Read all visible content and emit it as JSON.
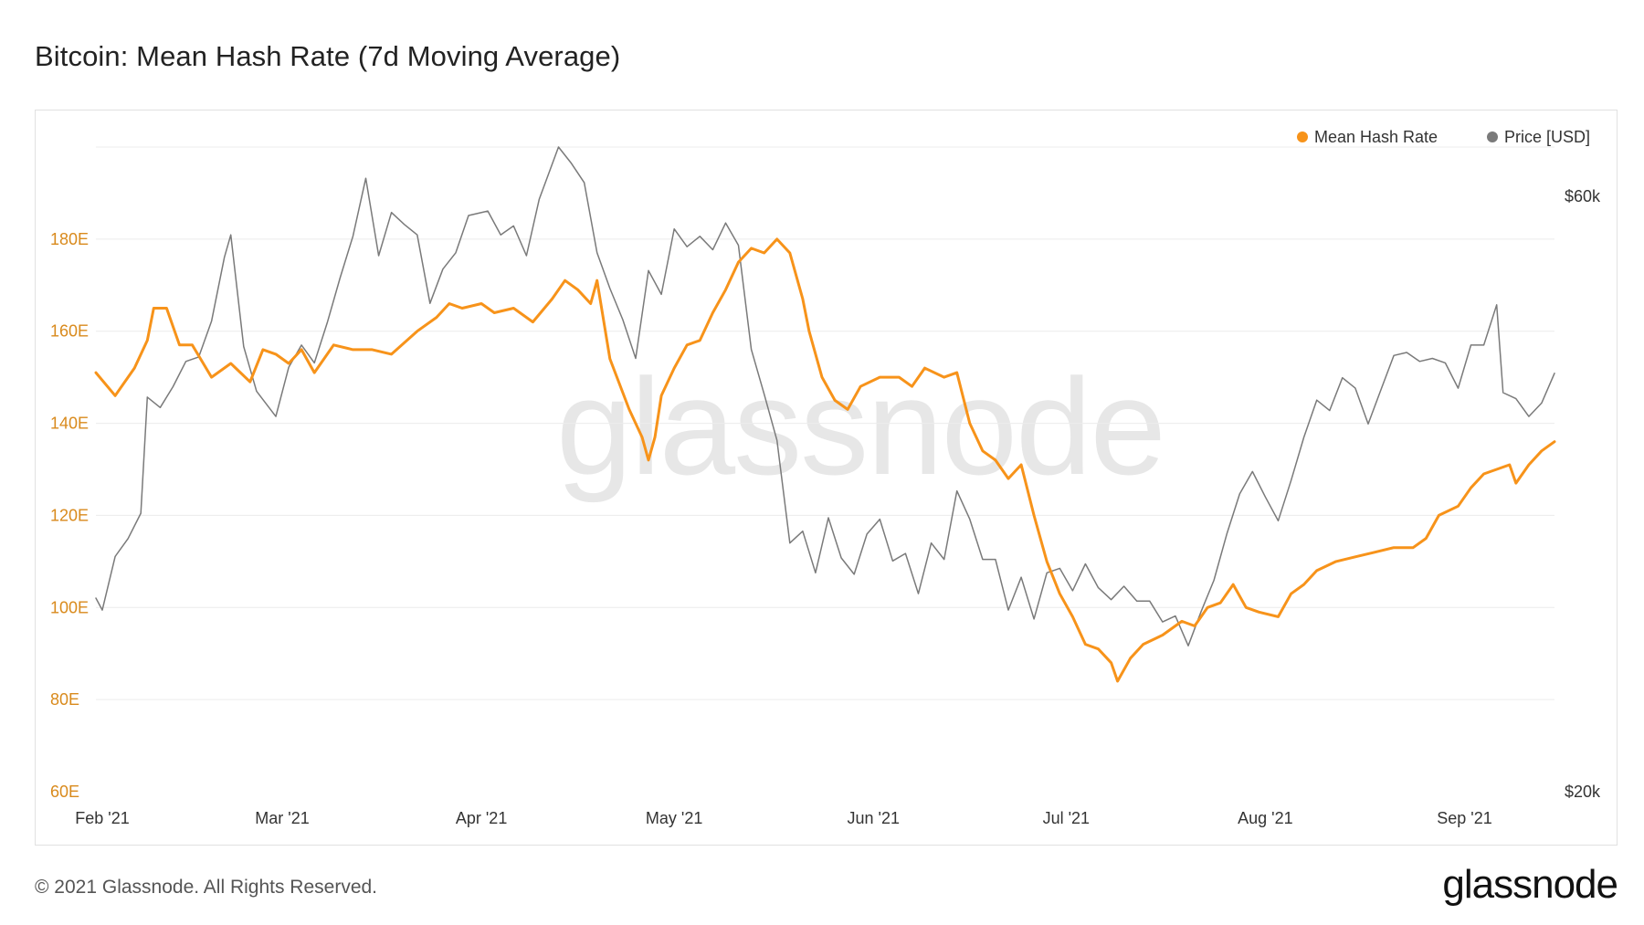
{
  "page": {
    "title": "Bitcoin: Mean Hash Rate (7d Moving Average)",
    "copyright": "© 2021 Glassnode. All Rights Reserved.",
    "logo_text": "glassnode",
    "watermark_text": "glassnode"
  },
  "colors": {
    "hash_rate": "#f7931a",
    "price": "#7a7a7a",
    "grid": "#ececec",
    "left_axis_text": "#d98a1c"
  },
  "chart_data": {
    "type": "line",
    "x_ticks": [
      "Feb '21",
      "Mar '21",
      "Apr '21",
      "May '21",
      "Jun '21",
      "Jul '21",
      "Aug '21",
      "Sep '21"
    ],
    "x_tick_dates": [
      "2021-02-01",
      "2021-03-01",
      "2021-04-01",
      "2021-05-01",
      "2021-06-01",
      "2021-07-01",
      "2021-08-01",
      "2021-09-01"
    ],
    "xlim": [
      "2021-01-31",
      "2021-09-15"
    ],
    "y_left": {
      "ticks": [
        "60E",
        "80E",
        "100E",
        "120E",
        "140E",
        "160E",
        "180E"
      ],
      "tick_values": [
        60,
        80,
        100,
        120,
        140,
        160,
        180
      ],
      "ylim": [
        60,
        200
      ]
    },
    "y_right": {
      "ticks": [
        "$20k",
        "$60k"
      ],
      "tick_values": [
        20000,
        60000
      ],
      "ylim": [
        20000,
        63300
      ]
    },
    "grid": true,
    "legend_position": "top-right",
    "series": [
      {
        "name": "Mean Hash Rate",
        "axis": "left",
        "color": "#f7931a",
        "points": [
          [
            "2021-01-31",
            151
          ],
          [
            "2021-02-03",
            146
          ],
          [
            "2021-02-06",
            152
          ],
          [
            "2021-02-08",
            158
          ],
          [
            "2021-02-09",
            165
          ],
          [
            "2021-02-11",
            165
          ],
          [
            "2021-02-13",
            157
          ],
          [
            "2021-02-15",
            157
          ],
          [
            "2021-02-18",
            150
          ],
          [
            "2021-02-21",
            153
          ],
          [
            "2021-02-24",
            149
          ],
          [
            "2021-02-26",
            156
          ],
          [
            "2021-02-28",
            155
          ],
          [
            "2021-03-02",
            153
          ],
          [
            "2021-03-04",
            156
          ],
          [
            "2021-03-06",
            151
          ],
          [
            "2021-03-09",
            157
          ],
          [
            "2021-03-12",
            156
          ],
          [
            "2021-03-15",
            156
          ],
          [
            "2021-03-18",
            155
          ],
          [
            "2021-03-22",
            160
          ],
          [
            "2021-03-25",
            163
          ],
          [
            "2021-03-27",
            166
          ],
          [
            "2021-03-29",
            165
          ],
          [
            "2021-04-01",
            166
          ],
          [
            "2021-04-03",
            164
          ],
          [
            "2021-04-06",
            165
          ],
          [
            "2021-04-09",
            162
          ],
          [
            "2021-04-12",
            167
          ],
          [
            "2021-04-14",
            171
          ],
          [
            "2021-04-16",
            169
          ],
          [
            "2021-04-18",
            166
          ],
          [
            "2021-04-19",
            171
          ],
          [
            "2021-04-21",
            154
          ],
          [
            "2021-04-24",
            143
          ],
          [
            "2021-04-26",
            137
          ],
          [
            "2021-04-27",
            132
          ],
          [
            "2021-04-28",
            137
          ],
          [
            "2021-04-29",
            146
          ],
          [
            "2021-05-01",
            152
          ],
          [
            "2021-05-03",
            157
          ],
          [
            "2021-05-05",
            158
          ],
          [
            "2021-05-07",
            164
          ],
          [
            "2021-05-09",
            169
          ],
          [
            "2021-05-11",
            175
          ],
          [
            "2021-05-13",
            178
          ],
          [
            "2021-05-15",
            177
          ],
          [
            "2021-05-17",
            180
          ],
          [
            "2021-05-19",
            177
          ],
          [
            "2021-05-21",
            167
          ],
          [
            "2021-05-22",
            160
          ],
          [
            "2021-05-24",
            150
          ],
          [
            "2021-05-26",
            145
          ],
          [
            "2021-05-28",
            143
          ],
          [
            "2021-05-30",
            148
          ],
          [
            "2021-06-02",
            150
          ],
          [
            "2021-06-05",
            150
          ],
          [
            "2021-06-07",
            148
          ],
          [
            "2021-06-09",
            152
          ],
          [
            "2021-06-12",
            150
          ],
          [
            "2021-06-14",
            151
          ],
          [
            "2021-06-16",
            140
          ],
          [
            "2021-06-18",
            134
          ],
          [
            "2021-06-20",
            132
          ],
          [
            "2021-06-22",
            128
          ],
          [
            "2021-06-24",
            131
          ],
          [
            "2021-06-26",
            120
          ],
          [
            "2021-06-28",
            110
          ],
          [
            "2021-06-30",
            103
          ],
          [
            "2021-07-02",
            98
          ],
          [
            "2021-07-04",
            92
          ],
          [
            "2021-07-06",
            91
          ],
          [
            "2021-07-08",
            88
          ],
          [
            "2021-07-09",
            84
          ],
          [
            "2021-07-11",
            89
          ],
          [
            "2021-07-13",
            92
          ],
          [
            "2021-07-16",
            94
          ],
          [
            "2021-07-19",
            97
          ],
          [
            "2021-07-21",
            96
          ],
          [
            "2021-07-23",
            100
          ],
          [
            "2021-07-25",
            101
          ],
          [
            "2021-07-27",
            105
          ],
          [
            "2021-07-29",
            100
          ],
          [
            "2021-07-31",
            99
          ],
          [
            "2021-08-03",
            98
          ],
          [
            "2021-08-05",
            103
          ],
          [
            "2021-08-07",
            105
          ],
          [
            "2021-08-09",
            108
          ],
          [
            "2021-08-12",
            110
          ],
          [
            "2021-08-15",
            111
          ],
          [
            "2021-08-18",
            112
          ],
          [
            "2021-08-21",
            113
          ],
          [
            "2021-08-24",
            113
          ],
          [
            "2021-08-26",
            115
          ],
          [
            "2021-08-28",
            120
          ],
          [
            "2021-08-31",
            122
          ],
          [
            "2021-09-02",
            126
          ],
          [
            "2021-09-04",
            129
          ],
          [
            "2021-09-06",
            130
          ],
          [
            "2021-09-08",
            131
          ],
          [
            "2021-09-09",
            127
          ],
          [
            "2021-09-11",
            131
          ],
          [
            "2021-09-13",
            134
          ],
          [
            "2021-09-15",
            136
          ]
        ]
      },
      {
        "name": "Price [USD]",
        "axis": "right",
        "color": "#7a7a7a",
        "points": [
          [
            "2021-01-31",
            33000
          ],
          [
            "2021-02-01",
            32200
          ],
          [
            "2021-02-03",
            35800
          ],
          [
            "2021-02-05",
            37000
          ],
          [
            "2021-02-07",
            38700
          ],
          [
            "2021-02-08",
            46500
          ],
          [
            "2021-02-10",
            45800
          ],
          [
            "2021-02-12",
            47200
          ],
          [
            "2021-02-14",
            48900
          ],
          [
            "2021-02-16",
            49200
          ],
          [
            "2021-02-18",
            51600
          ],
          [
            "2021-02-20",
            55900
          ],
          [
            "2021-02-21",
            57400
          ],
          [
            "2021-02-23",
            49900
          ],
          [
            "2021-02-25",
            46900
          ],
          [
            "2021-02-28",
            45200
          ],
          [
            "2021-03-02",
            48500
          ],
          [
            "2021-03-04",
            50000
          ],
          [
            "2021-03-06",
            48800
          ],
          [
            "2021-03-08",
            51500
          ],
          [
            "2021-03-10",
            54500
          ],
          [
            "2021-03-12",
            57300
          ],
          [
            "2021-03-14",
            61200
          ],
          [
            "2021-03-16",
            56000
          ],
          [
            "2021-03-18",
            58900
          ],
          [
            "2021-03-20",
            58100
          ],
          [
            "2021-03-22",
            57400
          ],
          [
            "2021-03-24",
            52800
          ],
          [
            "2021-03-26",
            55100
          ],
          [
            "2021-03-28",
            56200
          ],
          [
            "2021-03-30",
            58700
          ],
          [
            "2021-04-02",
            59000
          ],
          [
            "2021-04-04",
            57400
          ],
          [
            "2021-04-06",
            58000
          ],
          [
            "2021-04-08",
            56000
          ],
          [
            "2021-04-10",
            59800
          ],
          [
            "2021-04-13",
            63300
          ],
          [
            "2021-04-15",
            62200
          ],
          [
            "2021-04-17",
            60900
          ],
          [
            "2021-04-19",
            56200
          ],
          [
            "2021-04-21",
            53800
          ],
          [
            "2021-04-23",
            51700
          ],
          [
            "2021-04-25",
            49100
          ],
          [
            "2021-04-27",
            55000
          ],
          [
            "2021-04-29",
            53400
          ],
          [
            "2021-05-01",
            57800
          ],
          [
            "2021-05-03",
            56600
          ],
          [
            "2021-05-05",
            57300
          ],
          [
            "2021-05-07",
            56400
          ],
          [
            "2021-05-09",
            58200
          ],
          [
            "2021-05-11",
            56700
          ],
          [
            "2021-05-13",
            49700
          ],
          [
            "2021-05-15",
            46700
          ],
          [
            "2021-05-17",
            43600
          ],
          [
            "2021-05-19",
            36700
          ],
          [
            "2021-05-21",
            37500
          ],
          [
            "2021-05-23",
            34700
          ],
          [
            "2021-05-25",
            38400
          ],
          [
            "2021-05-27",
            35700
          ],
          [
            "2021-05-29",
            34600
          ],
          [
            "2021-05-31",
            37300
          ],
          [
            "2021-06-02",
            38300
          ],
          [
            "2021-06-04",
            35500
          ],
          [
            "2021-06-06",
            36000
          ],
          [
            "2021-06-08",
            33300
          ],
          [
            "2021-06-10",
            36700
          ],
          [
            "2021-06-12",
            35600
          ],
          [
            "2021-06-14",
            40200
          ],
          [
            "2021-06-16",
            38300
          ],
          [
            "2021-06-18",
            35600
          ],
          [
            "2021-06-20",
            35600
          ],
          [
            "2021-06-22",
            32200
          ],
          [
            "2021-06-24",
            34400
          ],
          [
            "2021-06-26",
            31600
          ],
          [
            "2021-06-28",
            34700
          ],
          [
            "2021-06-30",
            35000
          ],
          [
            "2021-07-02",
            33500
          ],
          [
            "2021-07-04",
            35300
          ],
          [
            "2021-07-06",
            33700
          ],
          [
            "2021-07-08",
            32900
          ],
          [
            "2021-07-10",
            33800
          ],
          [
            "2021-07-12",
            32800
          ],
          [
            "2021-07-14",
            32800
          ],
          [
            "2021-07-16",
            31400
          ],
          [
            "2021-07-18",
            31800
          ],
          [
            "2021-07-20",
            29800
          ],
          [
            "2021-07-22",
            32100
          ],
          [
            "2021-07-24",
            34200
          ],
          [
            "2021-07-26",
            37300
          ],
          [
            "2021-07-28",
            40000
          ],
          [
            "2021-07-30",
            41500
          ],
          [
            "2021-08-01",
            39800
          ],
          [
            "2021-08-03",
            38200
          ],
          [
            "2021-08-05",
            40900
          ],
          [
            "2021-08-07",
            43800
          ],
          [
            "2021-08-09",
            46300
          ],
          [
            "2021-08-11",
            45600
          ],
          [
            "2021-08-13",
            47800
          ],
          [
            "2021-08-15",
            47100
          ],
          [
            "2021-08-17",
            44700
          ],
          [
            "2021-08-19",
            47000
          ],
          [
            "2021-08-21",
            49300
          ],
          [
            "2021-08-23",
            49500
          ],
          [
            "2021-08-25",
            48900
          ],
          [
            "2021-08-27",
            49100
          ],
          [
            "2021-08-29",
            48800
          ],
          [
            "2021-08-31",
            47100
          ],
          [
            "2021-09-02",
            50000
          ],
          [
            "2021-09-04",
            50000
          ],
          [
            "2021-09-06",
            52700
          ],
          [
            "2021-09-07",
            46800
          ],
          [
            "2021-09-09",
            46400
          ],
          [
            "2021-09-11",
            45200
          ],
          [
            "2021-09-13",
            46100
          ],
          [
            "2021-09-15",
            48100
          ]
        ]
      }
    ]
  }
}
